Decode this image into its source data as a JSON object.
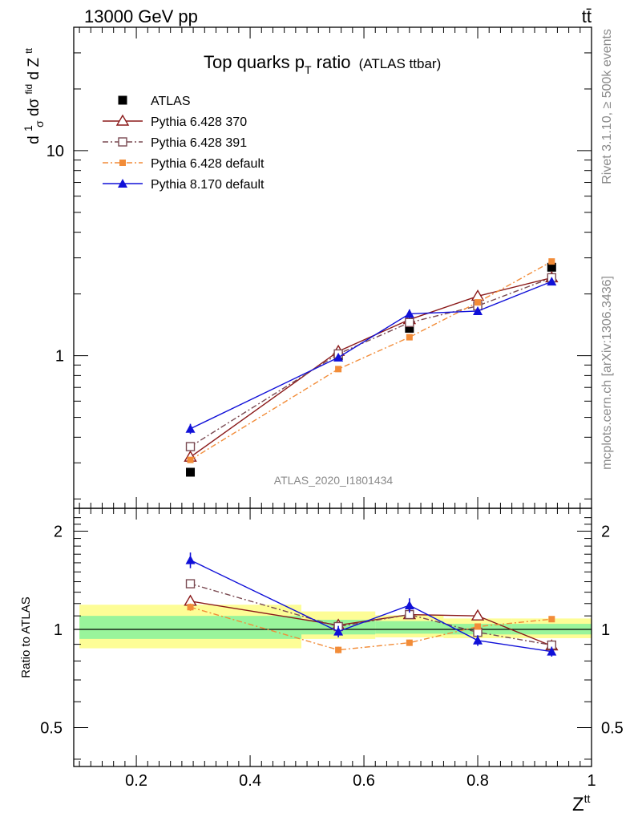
{
  "header": {
    "energy_label": "13000 GeV pp",
    "process_label": "tt̄"
  },
  "side_labels": {
    "rivet": "Rivet 3.1.10, ≥ 500k events",
    "mcplots": "mcplots.cern.ch [arXiv:1306.3436]"
  },
  "chart_data": [
    {
      "type": "line",
      "title_main": "Top quarks p",
      "title_sub": "T",
      "title_rest": " ratio",
      "title_small": "(ATLAS ttbar)",
      "ylabel_parts": [
        "d",
        "1",
        "σ",
        "dσ",
        "fid",
        "d Z",
        "tt"
      ],
      "yscale": "log",
      "ylim": [
        0.18,
        40
      ],
      "y_ticks": [
        {
          "v": 1,
          "label": "1"
        },
        {
          "v": 10,
          "label": "10"
        }
      ],
      "watermark": "ATLAS_2020_I1801434",
      "legend_position": "top-left",
      "series": [
        {
          "name": "ATLAS",
          "color": "#000000",
          "marker": "square-filled",
          "x": [
            0.295,
            0.555,
            0.68,
            0.8,
            0.93
          ],
          "y": [
            0.27,
            1.0,
            1.36,
            1.75,
            2.7
          ],
          "err": [
            0,
            0,
            0,
            0,
            0
          ]
        },
        {
          "name": "Pythia 6.428 370",
          "color": "#8b1a1a",
          "marker": "triangle-open",
          "dash": "",
          "x": [
            0.295,
            0.555,
            0.68,
            0.8,
            0.93
          ],
          "y": [
            0.32,
            1.05,
            1.5,
            1.95,
            2.4
          ],
          "err": [
            0.01,
            0.02,
            0.03,
            0.04,
            0.04
          ]
        },
        {
          "name": "Pythia 6.428 391",
          "color": "#7a4a52",
          "marker": "square-open",
          "dash": "7,3,2,3",
          "x": [
            0.295,
            0.555,
            0.68,
            0.8,
            0.93
          ],
          "y": [
            0.36,
            1.02,
            1.45,
            1.75,
            2.4
          ],
          "err": [
            0.01,
            0.02,
            0.03,
            0.04,
            0.04
          ]
        },
        {
          "name": "Pythia 6.428 default",
          "color": "#f28c38",
          "marker": "square-filled-small",
          "dash": "7,3,2,3",
          "x": [
            0.295,
            0.555,
            0.68,
            0.8,
            0.93
          ],
          "y": [
            0.31,
            0.86,
            1.23,
            1.82,
            2.88
          ],
          "err": [
            0.01,
            0.02,
            0.03,
            0.04,
            0.05
          ]
        },
        {
          "name": "Pythia 8.170 default",
          "color": "#1010d8",
          "marker": "triangle-filled",
          "dash": "",
          "x": [
            0.295,
            0.555,
            0.68,
            0.8,
            0.93
          ],
          "y": [
            0.44,
            0.98,
            1.6,
            1.65,
            2.3
          ],
          "err": [
            0.025,
            0.04,
            0.08,
            0.06,
            0.06
          ]
        }
      ]
    },
    {
      "type": "line",
      "ylabel": "Ratio to ATLAS",
      "yscale": "log",
      "ylim": [
        0.38,
        2.35
      ],
      "xlim": [
        0.09,
        1.0
      ],
      "xlabel": "Z",
      "xlabel_sup": "tt",
      "x_ticks": [
        {
          "v": 0.2,
          "label": "0.2"
        },
        {
          "v": 0.4,
          "label": "0.4"
        },
        {
          "v": 0.6,
          "label": "0.6"
        },
        {
          "v": 0.8,
          "label": "0.8"
        },
        {
          "v": 1.0,
          "label": "1"
        }
      ],
      "y_ticks": [
        {
          "v": 0.5,
          "label": "0.5"
        },
        {
          "v": 1,
          "label": "1"
        },
        {
          "v": 2,
          "label": "2"
        }
      ],
      "bins": [
        0.1,
        0.49,
        0.62,
        0.74,
        0.86,
        1.0
      ],
      "band_yellow": [
        [
          0.875,
          1.19
        ],
        [
          0.935,
          1.135
        ],
        [
          0.945,
          1.105
        ],
        [
          0.94,
          1.08
        ],
        [
          0.94,
          1.08
        ]
      ],
      "band_green": [
        [
          0.935,
          1.1
        ],
        [
          0.965,
          1.07
        ],
        [
          0.97,
          1.06
        ],
        [
          0.965,
          1.04
        ],
        [
          0.965,
          1.04
        ]
      ],
      "series": [
        {
          "name": "Pythia 6.428 370",
          "color": "#8b1a1a",
          "marker": "triangle-open",
          "dash": "",
          "x": [
            0.295,
            0.555,
            0.68,
            0.8,
            0.93
          ],
          "y": [
            1.22,
            1.03,
            1.11,
            1.1,
            0.89
          ],
          "err": [
            0.03,
            0.02,
            0.02,
            0.02,
            0.02
          ]
        },
        {
          "name": "Pythia 6.428 391",
          "color": "#7a4a52",
          "marker": "square-open",
          "dash": "7,3,2,3",
          "x": [
            0.295,
            0.555,
            0.68,
            0.8,
            0.93
          ],
          "y": [
            1.38,
            1.02,
            1.11,
            0.98,
            0.895
          ],
          "err": [
            0.03,
            0.02,
            0.02,
            0.02,
            0.02
          ]
        },
        {
          "name": "Pythia 6.428 default",
          "color": "#f28c38",
          "marker": "square-filled-small",
          "dash": "7,3,2,3",
          "x": [
            0.295,
            0.555,
            0.68,
            0.8,
            0.93
          ],
          "y": [
            1.17,
            0.865,
            0.91,
            1.02,
            1.075
          ],
          "err": [
            0.03,
            0.02,
            0.02,
            0.02,
            0.02
          ]
        },
        {
          "name": "Pythia 8.170 default",
          "color": "#1010d8",
          "marker": "triangle-filled",
          "dash": "",
          "x": [
            0.295,
            0.555,
            0.68,
            0.8,
            0.93
          ],
          "y": [
            1.63,
            0.985,
            1.185,
            0.925,
            0.855
          ],
          "err": [
            0.09,
            0.04,
            0.06,
            0.035,
            0.03
          ]
        }
      ]
    }
  ]
}
